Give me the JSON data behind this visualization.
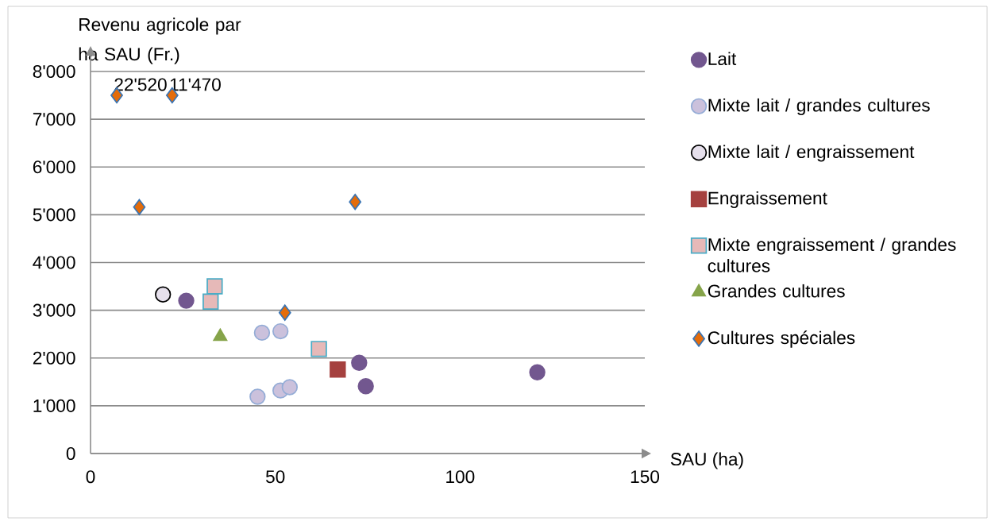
{
  "chart_data": {
    "type": "scatter",
    "ylabel": "Revenu agricole par ha SAU (Fr.)",
    "xlabel": "SAU (ha)",
    "xlim": [
      0,
      150
    ],
    "xticks": [
      0,
      50,
      100,
      150
    ],
    "ylim": [
      0,
      8000
    ],
    "yticks": [
      {
        "value": 0,
        "label": "0"
      },
      {
        "value": 1000,
        "label": "1'000"
      },
      {
        "value": 2000,
        "label": "2'000"
      },
      {
        "value": 3000,
        "label": "3'000"
      },
      {
        "value": 4000,
        "label": "4'000"
      },
      {
        "value": 5000,
        "label": "5'000"
      },
      {
        "value": 6000,
        "label": "6'000"
      },
      {
        "value": 7000,
        "label": "7'000"
      },
      {
        "value": 8000,
        "label": "8'000"
      }
    ],
    "grid": "y",
    "legend": "right",
    "series": [
      {
        "name": "Lait",
        "color": "#72578f",
        "marker": "circle",
        "x": [
          25.9,
          72.7,
          74.5,
          120.9
        ],
        "values": [
          3200,
          1900,
          1410,
          1700
        ]
      },
      {
        "name": "Mixte lait / grandes cultures",
        "color": "#cbc1dc",
        "marker": "circle",
        "x": [
          46.4,
          51.4,
          45.2,
          51.4,
          53.9
        ],
        "values": [
          2530,
          2560,
          1190,
          1320,
          1390
        ]
      },
      {
        "name": "Mixte lait / engraissement",
        "color": "#e6e0ec",
        "marker": "circle",
        "x": [
          19.6
        ],
        "values": [
          3330
        ]
      },
      {
        "name": "Engraissement",
        "color": "#a5413f",
        "marker": "square",
        "x": [
          66.9
        ],
        "values": [
          1760
        ]
      },
      {
        "name": "Mixte engraissement / grandes cultures",
        "color": "#e6b9b8",
        "marker": "square",
        "x": [
          33.6,
          32.5,
          61.8
        ],
        "values": [
          3500,
          3180,
          2190
        ]
      },
      {
        "name": "Grandes cultures",
        "color": "#86a44a",
        "marker": "triangle",
        "x": [
          35.1
        ],
        "values": [
          2450
        ]
      },
      {
        "name": "Cultures spéciales",
        "color": "#e46c0a",
        "marker": "diamond",
        "x": [
          7.1,
          22.1,
          13.2,
          71.6,
          52.6
        ],
        "values": [
          7500,
          7500,
          5160,
          5270,
          2950
        ]
      }
    ],
    "annotations": [
      {
        "text": "22'520",
        "x": 7.1,
        "y": 7500
      },
      {
        "text": "11'470",
        "x": 22.1,
        "y": 7500
      }
    ]
  }
}
